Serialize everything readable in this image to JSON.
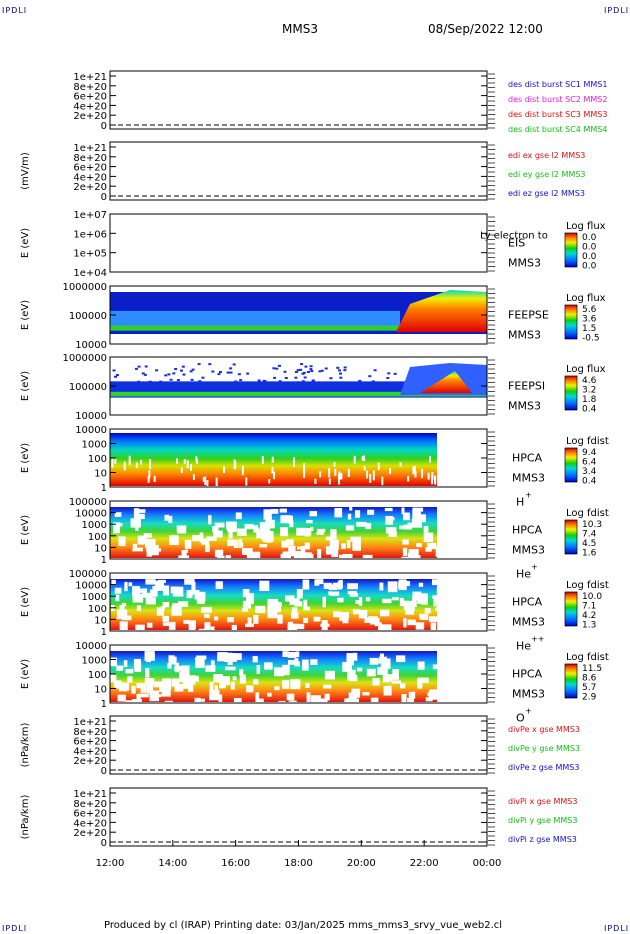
{
  "corners": {
    "tl": "IPDLI",
    "tr": "IPDLI",
    "bl": "IPDLI",
    "br": "IPDLI"
  },
  "header": {
    "mission": "MMS3",
    "datetime": "08/Sep/2022 12:00"
  },
  "footer": {
    "text": "Produced by cl (IRAP)   Printing date: 03/Jan/2025   mms_mms3_srvy_vue_web2.cl"
  },
  "chart_data": {
    "type": "heatmap",
    "x": {
      "ticks": [
        "12:00",
        "14:00",
        "16:00",
        "18:00",
        "20:00",
        "22:00",
        "00:00"
      ]
    },
    "panels": [
      {
        "id": "des",
        "ylabel": "",
        "ticks": [
          "1e+21",
          "8e+20",
          "6e+20",
          "4e+20",
          "2e+20",
          "0"
        ],
        "legend": [
          {
            "text": "des dist burst SC1 MMS1",
            "color": "#1010d0"
          },
          {
            "text": "des dist burst SC2 MMS2",
            "color": "#e020e0"
          },
          {
            "text": "des dist burst SC3 MMS3",
            "color": "#e01010"
          },
          {
            "text": "des dist burst SC4 MMS4",
            "color": "#10c010"
          }
        ]
      },
      {
        "id": "edi",
        "ylabel": "(mV/m)",
        "ticks": [
          "1e+21",
          "8e+20",
          "6e+20",
          "4e+20",
          "2e+20",
          "0"
        ],
        "legend": [
          {
            "text": "edi ex gse l2 MMS3",
            "color": "#e01010"
          },
          {
            "text": "edi ey gse l2 MMS3",
            "color": "#10c010"
          },
          {
            "text": "edi ez gse l2 MMS3",
            "color": "#1010d0"
          }
        ]
      },
      {
        "id": "eis",
        "ylabel": "E (eV)",
        "ticks": [
          "1e+07",
          "1e+06",
          "1e+05",
          "1e+04"
        ],
        "inst": "EIS",
        "overlap": "Ly electron to",
        "sc": "MMS3",
        "cbar_title": "Log flux",
        "cbar_ticks": [
          "0.0",
          "0.0",
          "0.0",
          "0.0"
        ]
      },
      {
        "id": "feepse",
        "ylabel": "E (eV)",
        "ticks": [
          "1000000",
          "100000",
          "10000"
        ],
        "inst": "FEEPSE",
        "sc": "MMS3",
        "cbar_title": "Log flux",
        "cbar_ticks": [
          "5.6",
          "3.6",
          "1.5",
          "-0.5"
        ]
      },
      {
        "id": "feepsi",
        "ylabel": "E (eV)",
        "ticks": [
          "1000000",
          "100000",
          "10000"
        ],
        "inst": "FEEPSI",
        "sc": "MMS3",
        "cbar_title": "Log flux",
        "cbar_ticks": [
          "4.6",
          "3.2",
          "1.8",
          "0.4"
        ]
      },
      {
        "id": "hpca_h",
        "ylabel": "E (eV)",
        "ticks": [
          "10000",
          "1000",
          "100",
          "10",
          "1"
        ],
        "inst": "HPCA",
        "sc": "MMS3",
        "species": "H",
        "sup": "+",
        "cbar_title": "Log fdist",
        "cbar_ticks": [
          "9.4",
          "6.4",
          "3.4",
          "0.4"
        ]
      },
      {
        "id": "hpca_he1",
        "ylabel": "E (eV)",
        "ticks": [
          "100000",
          "10000",
          "1000",
          "100",
          "10",
          "1"
        ],
        "inst": "HPCA",
        "sc": "MMS3",
        "species": "He",
        "sup": "+",
        "cbar_title": "Log fdist",
        "cbar_ticks": [
          "10.3",
          "7.4",
          "4.5",
          "1.6"
        ]
      },
      {
        "id": "hpca_he2",
        "ylabel": "E (eV)",
        "ticks": [
          "100000",
          "10000",
          "1000",
          "100",
          "10",
          "1"
        ],
        "inst": "HPCA",
        "sc": "MMS3",
        "species": "He",
        "sup": "++",
        "cbar_title": "Log fdist",
        "cbar_ticks": [
          "10.0",
          "7.1",
          "4.2",
          "1.3"
        ]
      },
      {
        "id": "hpca_o",
        "ylabel": "E (eV)",
        "ticks": [
          "10000",
          "1000",
          "100",
          "10",
          "1"
        ],
        "inst": "HPCA",
        "sc": "MMS3",
        "species": "O",
        "sup": "+",
        "cbar_title": "Log fdist",
        "cbar_ticks": [
          "11.5",
          "8.6",
          "5.7",
          "2.9"
        ]
      },
      {
        "id": "divpe",
        "ylabel": "(nPa/km)",
        "ticks": [
          "1e+21",
          "8e+20",
          "6e+20",
          "4e+20",
          "2e+20",
          "0"
        ],
        "legend": [
          {
            "text": "divPe x gse MMS3",
            "color": "#e01010"
          },
          {
            "text": "divPe y gse MMS3",
            "color": "#10c010"
          },
          {
            "text": "divPe z gse MMS3",
            "color": "#1010d0"
          }
        ]
      },
      {
        "id": "divpi",
        "ylabel": "(nPa/km)",
        "ticks": [
          "1e+21",
          "8e+20",
          "6e+20",
          "4e+20",
          "2e+20",
          "0"
        ],
        "legend": [
          {
            "text": "divPi x gse MMS3",
            "color": "#e01010"
          },
          {
            "text": "divPi y gse MMS3",
            "color": "#10c010"
          },
          {
            "text": "divPi z gse MMS3",
            "color": "#1010d0"
          }
        ]
      }
    ]
  }
}
